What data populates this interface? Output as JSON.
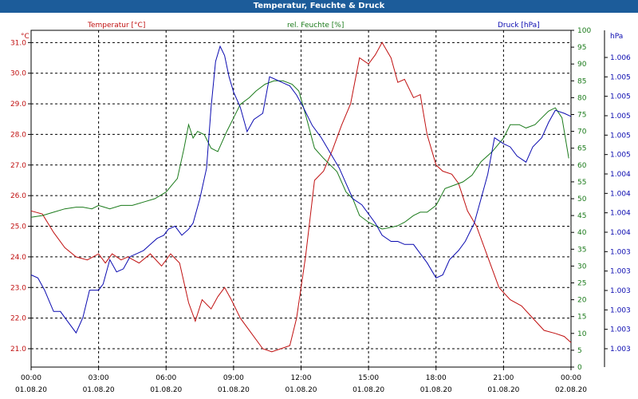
{
  "title": "Temperatur, Feuchte & Druck",
  "colors": {
    "temperature": "#c01010",
    "humidity": "#1a7a1a",
    "pressure": "#0a0ab0",
    "grid": "#000000",
    "titlebar": "#1c5c9a"
  },
  "chart_data": {
    "type": "line",
    "title": "Temperatur, Feuchte & Druck",
    "grid": true,
    "x_tick_labels": [
      {
        "time": "00:00",
        "date": "01.08.20"
      },
      {
        "time": "03:00",
        "date": "01.08.20"
      },
      {
        "time": "06:00",
        "date": "01.08.20"
      },
      {
        "time": "09:00",
        "date": "01.08.20"
      },
      {
        "time": "12:00",
        "date": "01.08.20"
      },
      {
        "time": "15:00",
        "date": "01.08.20"
      },
      {
        "time": "18:00",
        "date": "01.08.20"
      },
      {
        "time": "21:00",
        "date": "01.08.20"
      },
      {
        "time": "00:00",
        "date": "02.08.20"
      }
    ],
    "x_range_hours": [
      0,
      24
    ],
    "axes": {
      "temperature": {
        "label": "Temperatur [°C]",
        "unit": "°C",
        "range": [
          20.4,
          31.4
        ],
        "ticks": [
          "31.0",
          "30.0",
          "29.0",
          "28.0",
          "27.0",
          "26.0",
          "25.0",
          "24.0",
          "23.0",
          "22.0",
          "21.0"
        ]
      },
      "humidity": {
        "label": "rel. Feuchte [%]",
        "unit": "%",
        "range": [
          0,
          100
        ],
        "ticks": [
          "100",
          "95",
          "90",
          "85",
          "80",
          "75",
          "70",
          "65",
          "60",
          "55",
          "50",
          "45",
          "40",
          "35",
          "30",
          "25",
          "20",
          "15",
          "10",
          "5",
          "0"
        ]
      },
      "pressure": {
        "label": "Druck [hPa]",
        "unit": "hPa",
        "range": [
          0,
          1
        ],
        "ticks": [
          "1.006",
          "1.005",
          "1.005",
          "1.005",
          "1.005",
          "1.005",
          "1.004",
          "1.004",
          "1.004",
          "1.004",
          "1.003",
          "1.003",
          "1.003",
          "1.003",
          "1.003",
          "1.003"
        ]
      }
    },
    "series": [
      {
        "name": "Temperatur [°C]",
        "axis": "temperature",
        "x": [
          0,
          0.5,
          1,
          1.5,
          2,
          2.5,
          3,
          3.3,
          3.6,
          4,
          4.3,
          4.8,
          5.3,
          5.8,
          6.2,
          6.6,
          7,
          7.3,
          7.6,
          8,
          8.3,
          8.6,
          8.9,
          9.3,
          9.8,
          10.3,
          10.7,
          11.1,
          11.5,
          11.8,
          12.2,
          12.6,
          13,
          13.4,
          13.8,
          14.2,
          14.6,
          15,
          15.3,
          15.6,
          16,
          16.3,
          16.6,
          17,
          17.3,
          17.6,
          18,
          18.3,
          18.7,
          19,
          19.4,
          19.8,
          20.3,
          20.8,
          21.3,
          21.8,
          22.3,
          22.8,
          23.3,
          23.7,
          24
        ],
        "values": [
          25.5,
          25.4,
          24.8,
          24.3,
          24,
          23.9,
          24.1,
          23.8,
          24.1,
          23.9,
          24,
          23.8,
          24.1,
          23.7,
          24.1,
          23.8,
          22.5,
          21.9,
          22.6,
          22.3,
          22.7,
          23,
          22.6,
          22,
          21.5,
          21,
          20.9,
          21,
          21.1,
          22,
          24,
          26.5,
          26.8,
          27.5,
          28.3,
          29,
          30.5,
          30.3,
          30.6,
          31,
          30.5,
          29.7,
          29.8,
          29.2,
          29.3,
          28,
          27,
          26.8,
          26.7,
          26.4,
          25.5,
          25,
          24,
          23,
          22.6,
          22.4,
          22,
          21.6,
          21.5,
          21.4,
          21.2
        ]
      },
      {
        "name": "rel. Feuchte [%]",
        "axis": "humidity",
        "x": [
          0,
          0.5,
          1,
          1.5,
          2,
          2.3,
          2.7,
          3,
          3.5,
          4,
          4.5,
          5,
          5.5,
          6,
          6.5,
          6.8,
          7,
          7.2,
          7.4,
          7.7,
          8,
          8.3,
          8.7,
          9,
          9.3,
          9.7,
          10,
          10.4,
          10.8,
          11.2,
          11.6,
          11.9,
          12.2,
          12.6,
          13,
          13.3,
          13.6,
          14,
          14.3,
          14.6,
          15,
          15.3,
          15.6,
          16,
          16.3,
          16.6,
          17,
          17.3,
          17.6,
          18,
          18.4,
          18.8,
          19.2,
          19.6,
          20,
          20.5,
          21,
          21.3,
          21.7,
          22,
          22.4,
          22.7,
          23,
          23.3,
          23.6,
          23.9
        ],
        "values": [
          44.5,
          45,
          46,
          47,
          47.5,
          47.5,
          47,
          48,
          47,
          48,
          48,
          49,
          50,
          52,
          56,
          65,
          72,
          68,
          70,
          69,
          65,
          64,
          70,
          74,
          78,
          80,
          82,
          84,
          85,
          85,
          84,
          82,
          75,
          65,
          62,
          60,
          58,
          52,
          50,
          45,
          43,
          42,
          41,
          41.5,
          42,
          43,
          45,
          46,
          46,
          48,
          53,
          54,
          55,
          57,
          61,
          64,
          68,
          72,
          72,
          71,
          72,
          74,
          76,
          77,
          74,
          62
        ]
      },
      {
        "name": "Druck [hPa]",
        "axis": "pressure",
        "x": [
          0,
          0.3,
          0.6,
          1,
          1.3,
          1.6,
          2,
          2.3,
          2.6,
          3,
          3.2,
          3.5,
          3.8,
          4.1,
          4.4,
          4.7,
          5,
          5.3,
          5.6,
          5.9,
          6.1,
          6.4,
          6.7,
          7,
          7.2,
          7.5,
          7.8,
          8,
          8.2,
          8.4,
          8.6,
          8.8,
          9,
          9.3,
          9.6,
          9.9,
          10.3,
          10.6,
          10.9,
          11.2,
          11.5,
          11.8,
          12.1,
          12.5,
          12.9,
          13.3,
          13.7,
          14,
          14.3,
          14.7,
          15,
          15.3,
          15.6,
          16,
          16.3,
          16.6,
          17,
          17.3,
          17.6,
          18,
          18.3,
          18.6,
          19,
          19.3,
          19.7,
          20,
          20.3,
          20.6,
          21,
          21.3,
          21.6,
          22,
          22.3,
          22.7,
          23,
          23.3,
          23.7,
          24
        ],
        "values": [
          0.25,
          0.24,
          0.2,
          0.13,
          0.13,
          0.1,
          0.06,
          0.11,
          0.2,
          0.2,
          0.22,
          0.3,
          0.26,
          0.27,
          0.31,
          0.32,
          0.33,
          0.35,
          0.37,
          0.38,
          0.4,
          0.41,
          0.38,
          0.4,
          0.42,
          0.5,
          0.6,
          0.8,
          0.95,
          1.0,
          0.97,
          0.9,
          0.85,
          0.8,
          0.72,
          0.76,
          0.78,
          0.9,
          0.89,
          0.88,
          0.87,
          0.84,
          0.8,
          0.74,
          0.7,
          0.65,
          0.6,
          0.55,
          0.5,
          0.48,
          0.45,
          0.42,
          0.38,
          0.36,
          0.36,
          0.35,
          0.35,
          0.32,
          0.29,
          0.24,
          0.25,
          0.3,
          0.33,
          0.36,
          0.42,
          0.5,
          0.58,
          0.7,
          0.68,
          0.67,
          0.64,
          0.62,
          0.67,
          0.7,
          0.75,
          0.79,
          0.78,
          0.77
        ]
      }
    ]
  }
}
